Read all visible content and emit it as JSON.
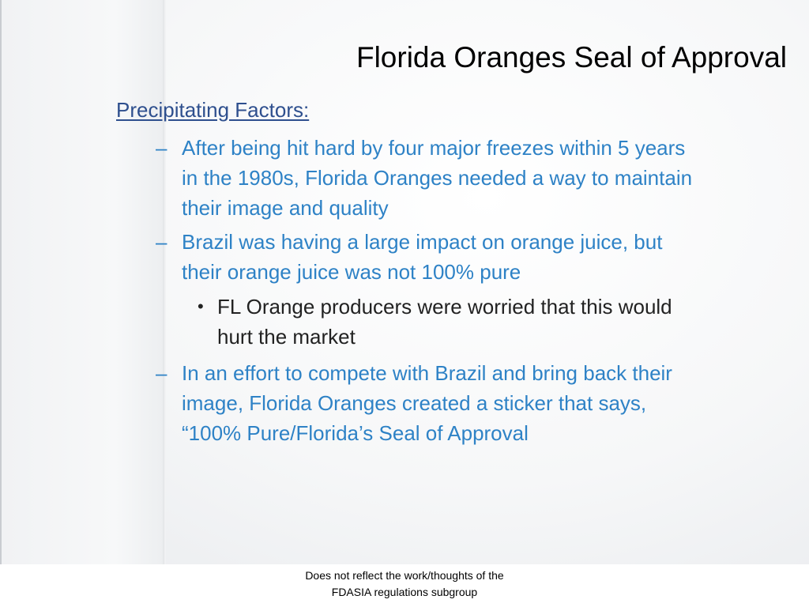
{
  "slide": {
    "title": "Florida Oranges Seal of Approval",
    "heading": "Precipitating Factors:",
    "dash_symbol": "–",
    "bullet_symbol": "•",
    "items": [
      {
        "lines": [
          "After being hit hard by four major freezes within 5 years",
          "in the 1980s, Florida Oranges needed a way to maintain",
          "their image and quality"
        ]
      },
      {
        "lines": [
          "Brazil was having a large impact on orange juice, but",
          "their orange juice was not 100% pure"
        ]
      },
      {
        "lines": [
          "In an effort to compete with Brazil and bring back their",
          "image, Florida Oranges created a sticker that says,",
          "“100% Pure/Florida’s Seal of Approval"
        ]
      }
    ],
    "sub_bullet": {
      "lines": [
        "FL Orange producers were worried that this would",
        "hurt the market"
      ]
    }
  },
  "footer": {
    "line1": "Does not reflect the work/thoughts of the",
    "line2": "FDASIA regulations subgroup"
  },
  "colors": {
    "title": "#000000",
    "heading": "#2e4f8e",
    "dash_items": "#2e82c6",
    "sub_bullet": "#222222"
  }
}
